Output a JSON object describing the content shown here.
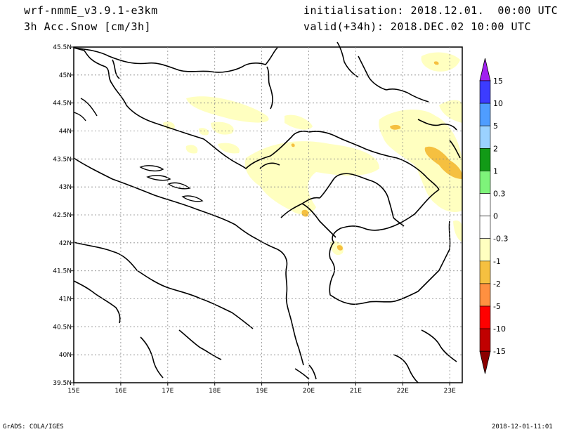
{
  "header": {
    "model": "wrf-nmmE_v3.9.1-e3km",
    "field": "3h Acc.Snow [cm/3h]",
    "init": "initialisation: 2018.12.01.  00:00 UTC",
    "valid": "valid(+34h): 2018.DEC.02 10:00 UTC"
  },
  "axes": {
    "lon_labels": [
      "15E",
      "16E",
      "17E",
      "18E",
      "19E",
      "20E",
      "21E",
      "22E",
      "23E"
    ],
    "lat_labels": [
      "45.5N",
      "45N",
      "44.5N",
      "44N",
      "43.5N",
      "43N",
      "42.5N",
      "42N",
      "41.5N",
      "41N",
      "40.5N",
      "40N",
      "39.5N"
    ]
  },
  "colorbar": {
    "labels": [
      "15",
      "10",
      "5",
      "2",
      "1",
      "0.3",
      "0",
      "-0.3",
      "-1",
      "-2",
      "-5",
      "-10",
      "-15"
    ],
    "colors": [
      "#a020f0",
      "#3c3cff",
      "#4f9dff",
      "#9bd2ff",
      "#129a16",
      "#7ef37a",
      "#ffffff",
      "#ffffff",
      "#ffffc0",
      "#f5c040",
      "#ff9040",
      "#ff0000",
      "#c00000",
      "#8b0000"
    ]
  },
  "footer": {
    "left": "GrADS: COLA/IGES",
    "right": "2018-12-01-11:01"
  }
}
